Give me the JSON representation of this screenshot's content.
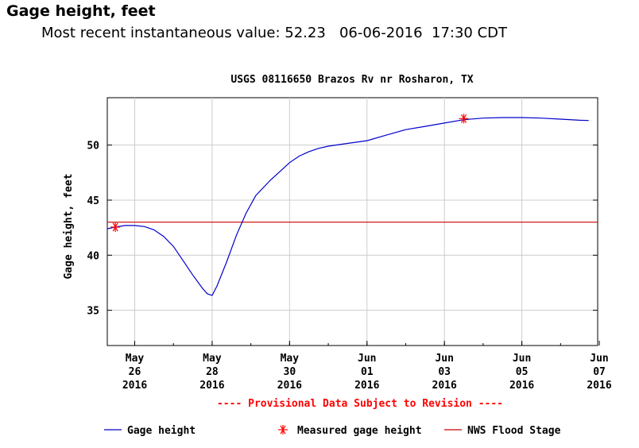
{
  "header": {
    "title": "Gage height, feet",
    "subtitle": "Most recent instantaneous value: 52.23   06-06-2016  17:30 CDT"
  },
  "chart_data": {
    "type": "line",
    "title": "USGS 08116650 Brazos Rv nr Rosharon, TX",
    "ylabel": "Gage height, feet",
    "xlabel": "",
    "ylim": [
      31.8,
      54.3
    ],
    "xlim": [
      "2016-05-25 07:00",
      "2016-06-06 23:00"
    ],
    "y_ticks": [
      35,
      40,
      45,
      50
    ],
    "x_ticks": [
      {
        "date": "2016-05-26",
        "label": [
          "May",
          "26",
          "2016"
        ]
      },
      {
        "date": "2016-05-28",
        "label": [
          "May",
          "28",
          "2016"
        ]
      },
      {
        "date": "2016-05-30",
        "label": [
          "May",
          "30",
          "2016"
        ]
      },
      {
        "date": "2016-06-01",
        "label": [
          "Jun",
          "01",
          "2016"
        ]
      },
      {
        "date": "2016-06-03",
        "label": [
          "Jun",
          "03",
          "2016"
        ]
      },
      {
        "date": "2016-06-05",
        "label": [
          "Jun",
          "05",
          "2016"
        ]
      },
      {
        "date": "2016-06-07",
        "label": [
          "Jun",
          "07",
          "2016"
        ]
      }
    ],
    "grid": true,
    "series": [
      {
        "name": "Gage height",
        "color": "#0000cc",
        "points": [
          [
            "2016-05-25 07:00",
            42.4
          ],
          [
            "2016-05-25 12:00",
            42.55
          ],
          [
            "2016-05-25 18:00",
            42.7
          ],
          [
            "2016-05-26 00:00",
            42.7
          ],
          [
            "2016-05-26 06:00",
            42.6
          ],
          [
            "2016-05-26 12:00",
            42.3
          ],
          [
            "2016-05-26 18:00",
            41.7
          ],
          [
            "2016-05-27 00:00",
            40.8
          ],
          [
            "2016-05-27 06:00",
            39.5
          ],
          [
            "2016-05-27 12:00",
            38.2
          ],
          [
            "2016-05-27 18:00",
            37.0
          ],
          [
            "2016-05-27 21:00",
            36.5
          ],
          [
            "2016-05-28 00:00",
            36.35
          ],
          [
            "2016-05-28 03:00",
            37.2
          ],
          [
            "2016-05-28 09:00",
            39.4
          ],
          [
            "2016-05-28 15:00",
            41.8
          ],
          [
            "2016-05-28 21:00",
            43.8
          ],
          [
            "2016-05-29 03:00",
            45.4
          ],
          [
            "2016-05-29 12:00",
            46.8
          ],
          [
            "2016-05-29 18:00",
            47.6
          ],
          [
            "2016-05-30 00:00",
            48.4
          ],
          [
            "2016-05-30 06:00",
            49.0
          ],
          [
            "2016-05-30 12:00",
            49.4
          ],
          [
            "2016-05-30 18:00",
            49.7
          ],
          [
            "2016-05-31 00:00",
            49.9
          ],
          [
            "2016-05-31 12:00",
            50.15
          ],
          [
            "2016-06-01 00:00",
            50.4
          ],
          [
            "2016-06-01 12:00",
            50.9
          ],
          [
            "2016-06-02 00:00",
            51.4
          ],
          [
            "2016-06-02 12:00",
            51.7
          ],
          [
            "2016-06-03 00:00",
            52.0
          ],
          [
            "2016-06-03 12:00",
            52.3
          ],
          [
            "2016-06-04 00:00",
            52.45
          ],
          [
            "2016-06-04 12:00",
            52.5
          ],
          [
            "2016-06-05 00:00",
            52.5
          ],
          [
            "2016-06-05 12:00",
            52.45
          ],
          [
            "2016-06-06 00:00",
            52.35
          ],
          [
            "2016-06-06 12:00",
            52.25
          ],
          [
            "2016-06-06 17:30",
            52.23
          ]
        ]
      }
    ],
    "measured": {
      "name": "Measured gage height",
      "color": "#ff0000",
      "points": [
        [
          "2016-05-25 12:00",
          42.55
        ],
        [
          "2016-06-03 12:00",
          52.4
        ]
      ]
    },
    "flood_stage": {
      "name": "NWS Flood Stage",
      "color": "#cc0000",
      "value": 43.0
    },
    "provisional_note": "---- Provisional Data Subject to Revision ----",
    "legend_position": "bottom"
  },
  "colors": {
    "grid": "#cccccc",
    "axis": "#000000",
    "note": "#ff0000"
  }
}
